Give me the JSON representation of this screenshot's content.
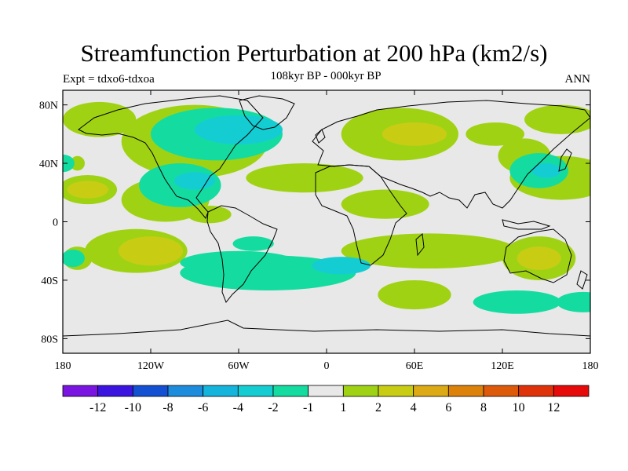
{
  "title": "Streamfunction Perturbation at 200 hPa (km2/s)",
  "subtitle": "108kyr BP - 000kyr BP",
  "left_string": "Expt = tdxo6-tdxoa",
  "right_string": "ANN",
  "lat_ticks": [
    {
      "value": 80,
      "label": "80N"
    },
    {
      "value": 40,
      "label": "40N"
    },
    {
      "value": 0,
      "label": "0"
    },
    {
      "value": -40,
      "label": "40S"
    },
    {
      "value": -80,
      "label": "80S"
    }
  ],
  "lon_ticks": [
    {
      "value": -180,
      "label": "180"
    },
    {
      "value": -120,
      "label": "120W"
    },
    {
      "value": -60,
      "label": "60W"
    },
    {
      "value": 0,
      "label": "0"
    },
    {
      "value": 60,
      "label": "60E"
    },
    {
      "value": 120,
      "label": "120E"
    },
    {
      "value": 180,
      "label": "180"
    }
  ],
  "colorbar": {
    "colors": [
      "#7a14e0",
      "#3c14e0",
      "#1450d2",
      "#1e8cdc",
      "#14b4dc",
      "#14cdd2",
      "#14dca0",
      "#e8e8e8",
      "#a0d214",
      "#c8cd14",
      "#dcaa14",
      "#dc820a",
      "#dc5a0a",
      "#e0320a",
      "#e60a0a"
    ],
    "labels": [
      "-12",
      "-10",
      "-8",
      "-6",
      "-4",
      "-2",
      "-1",
      "1",
      "2",
      "4",
      "6",
      "8",
      "10",
      "12"
    ]
  },
  "field_blobs": [
    {
      "lon": -90,
      "lat": 55,
      "rlon": 50,
      "rlat": 25,
      "level": 1
    },
    {
      "lon": -78,
      "lat": 63,
      "rlon": 32,
      "rlat": 12,
      "level": 2
    },
    {
      "lon": -110,
      "lat": 15,
      "rlon": 30,
      "rlat": 15,
      "level": 1
    },
    {
      "lon": -100,
      "lat": 20,
      "rlon": 18,
      "rlat": 8,
      "level": 2
    },
    {
      "lon": -155,
      "lat": 70,
      "rlon": 25,
      "rlat": 12,
      "level": 1
    },
    {
      "lon": 160,
      "lat": 70,
      "rlon": 25,
      "rlat": 10,
      "level": 1
    },
    {
      "lon": -170,
      "lat": 40,
      "rlon": 5,
      "rlat": 5,
      "level": 1
    },
    {
      "lon": -163,
      "lat": 22,
      "rlon": 20,
      "rlat": 10,
      "level": 1
    },
    {
      "lon": -163,
      "lat": 22,
      "rlon": 14,
      "rlat": 6,
      "level": 2
    },
    {
      "lon": -130,
      "lat": -20,
      "rlon": 35,
      "rlat": 15,
      "level": 1
    },
    {
      "lon": -120,
      "lat": -20,
      "rlon": 22,
      "rlat": 10,
      "level": 2
    },
    {
      "lon": -170,
      "lat": -25,
      "rlon": 10,
      "rlat": 8,
      "level": 1
    },
    {
      "lon": -80,
      "lat": 5,
      "rlon": 15,
      "rlat": 6,
      "level": 1
    },
    {
      "lon": -15,
      "lat": 30,
      "rlon": 40,
      "rlat": 10,
      "level": 1
    },
    {
      "lon": 40,
      "lat": 12,
      "rlon": 30,
      "rlat": 10,
      "level": 1
    },
    {
      "lon": 50,
      "lat": 60,
      "rlon": 40,
      "rlat": 18,
      "level": 1
    },
    {
      "lon": 60,
      "lat": 60,
      "rlon": 22,
      "rlat": 8,
      "level": 2
    },
    {
      "lon": 115,
      "lat": 60,
      "rlon": 20,
      "rlat": 8,
      "level": 1
    },
    {
      "lon": 160,
      "lat": 30,
      "rlon": 35,
      "rlat": 15,
      "level": 1
    },
    {
      "lon": 135,
      "lat": 45,
      "rlon": 18,
      "rlat": 12,
      "level": 1
    },
    {
      "lon": 145,
      "lat": -25,
      "rlon": 25,
      "rlat": 15,
      "level": 1
    },
    {
      "lon": 145,
      "lat": -25,
      "rlon": 15,
      "rlat": 8,
      "level": 2
    },
    {
      "lon": 70,
      "lat": -20,
      "rlon": 60,
      "rlat": 12,
      "level": 1
    },
    {
      "lon": 60,
      "lat": -50,
      "rlon": 25,
      "rlat": 10,
      "level": 1
    },
    {
      "lon": -40,
      "lat": -35,
      "rlon": 60,
      "rlat": 12,
      "level": -1
    },
    {
      "lon": -60,
      "lat": -28,
      "rlon": 40,
      "rlat": 8,
      "level": -1
    },
    {
      "lon": 10,
      "lat": -30,
      "rlon": 20,
      "rlat": 6,
      "level": -2
    },
    {
      "lon": -50,
      "lat": -15,
      "rlon": 14,
      "rlat": 5,
      "level": -1
    },
    {
      "lon": -75,
      "lat": 60,
      "rlon": 45,
      "rlat": 18,
      "level": -1
    },
    {
      "lon": -60,
      "lat": 63,
      "rlon": 30,
      "rlat": 10,
      "level": -2
    },
    {
      "lon": -100,
      "lat": 25,
      "rlon": 28,
      "rlat": 15,
      "level": -1
    },
    {
      "lon": -90,
      "lat": 28,
      "rlon": 14,
      "rlat": 6,
      "level": -2
    },
    {
      "lon": -180,
      "lat": 40,
      "rlon": 8,
      "rlat": 6,
      "level": -1
    },
    {
      "lon": -173,
      "lat": -25,
      "rlon": 8,
      "rlat": 6,
      "level": -1
    },
    {
      "lon": 145,
      "lat": 35,
      "rlon": 20,
      "rlat": 12,
      "level": -1
    },
    {
      "lon": 150,
      "lat": 35,
      "rlon": 10,
      "rlat": 5,
      "level": -2
    },
    {
      "lon": 175,
      "lat": -55,
      "rlon": 18,
      "rlat": 7,
      "level": -1
    },
    {
      "lon": 130,
      "lat": -55,
      "rlon": 30,
      "rlat": 8,
      "level": -1
    }
  ]
}
